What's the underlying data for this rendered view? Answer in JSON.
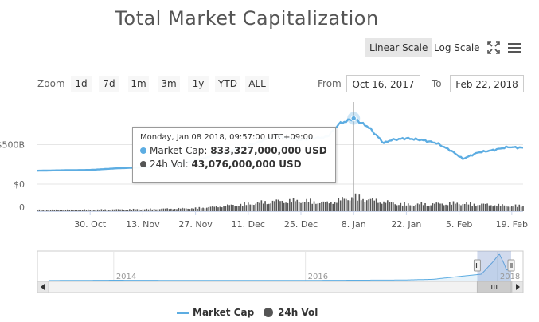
{
  "header": {
    "title": "Total Market Capitalization"
  },
  "scale_buttons": {
    "linear": "Linear Scale",
    "log": "Log Scale",
    "active": "linear"
  },
  "toolbar": {
    "fullscreen_icon": "fullscreen-icon",
    "menu_icon": "hamburger-menu-icon"
  },
  "zoom": {
    "label": "Zoom",
    "buttons": [
      "1d",
      "7d",
      "1m",
      "3m",
      "1y",
      "YTD",
      "ALL"
    ]
  },
  "range": {
    "from_label": "From",
    "from_value": "Oct 16, 2017",
    "to_label": "To",
    "to_value": "Feb 22, 2018"
  },
  "tooltip": {
    "date": "Monday, Jan 08 2018, 09:57:00 UTC+09:00",
    "market_cap_label": "Market Cap:",
    "market_cap_value": "833,327,000,000 USD",
    "vol_label": "24h Vol:",
    "vol_value": "43,076,000,000 USD"
  },
  "legend": {
    "market_cap": "Market Cap",
    "vol": "24h Vol"
  },
  "colors": {
    "market_cap": "#5dade2",
    "vol": "#555555",
    "grid": "#e6e6e6"
  },
  "chart_data": {
    "type": "line",
    "title": "Total Market Capitalization",
    "x_range": [
      "2017-10-16",
      "2018-02-22"
    ],
    "y_axis": {
      "labels": [
        "$0",
        "$500B"
      ],
      "range": [
        0,
        1000000000000
      ]
    },
    "vol_axis": {
      "labels": [
        "0"
      ]
    },
    "x_tick_labels": [
      "30. Oct",
      "13. Nov",
      "27. Nov",
      "11. Dec",
      "25. Dec",
      "8. Jan",
      "22. Jan",
      "5. Feb",
      "19. Feb"
    ],
    "series": [
      {
        "name": "Market Cap",
        "unit": "USD",
        "x": [
          "2017-10-16",
          "2017-10-23",
          "2017-10-30",
          "2017-11-06",
          "2017-11-13",
          "2017-11-20",
          "2017-11-27",
          "2017-12-04",
          "2017-12-11",
          "2017-12-18",
          "2017-12-25",
          "2018-01-01",
          "2018-01-04",
          "2018-01-08",
          "2018-01-12",
          "2018-01-16",
          "2018-01-18",
          "2018-01-22",
          "2018-01-26",
          "2018-01-30",
          "2018-02-03",
          "2018-02-06",
          "2018-02-10",
          "2018-02-14",
          "2018-02-18",
          "2018-02-22"
        ],
        "values": [
          170000000000,
          176000000000,
          180000000000,
          200000000000,
          212000000000,
          228000000000,
          300000000000,
          390000000000,
          485000000000,
          610000000000,
          560000000000,
          600000000000,
          760000000000,
          833327000000,
          720000000000,
          520000000000,
          560000000000,
          580000000000,
          560000000000,
          520000000000,
          420000000000,
          320000000000,
          400000000000,
          430000000000,
          470000000000,
          460000000000
        ]
      },
      {
        "name": "24h Vol",
        "unit": "USD",
        "x": [
          "2017-10-16",
          "2017-10-30",
          "2017-11-13",
          "2017-11-27",
          "2017-12-11",
          "2017-12-18",
          "2017-12-25",
          "2018-01-01",
          "2018-01-08",
          "2018-01-15",
          "2018-01-22",
          "2018-02-05",
          "2018-02-19"
        ],
        "values": [
          4000000000,
          4500000000,
          6000000000,
          9000000000,
          22000000000,
          30000000000,
          32000000000,
          25000000000,
          43076000000,
          30000000000,
          20000000000,
          24000000000,
          16000000000
        ]
      }
    ],
    "navigator": {
      "x_tick_labels": [
        "2014",
        "2016",
        "2018"
      ],
      "x_range": [
        "2013-04-28",
        "2018-02-22"
      ],
      "series": {
        "name": "Market Cap",
        "x": [
          "2013-04-28",
          "2014-01-01",
          "2015-01-01",
          "2016-01-01",
          "2017-01-01",
          "2017-05-01",
          "2017-09-01",
          "2017-11-01",
          "2017-12-15",
          "2018-01-08",
          "2018-01-25",
          "2018-02-05",
          "2018-02-22"
        ],
        "values": [
          2000000000,
          12000000000,
          5000000000,
          7000000000,
          17000000000,
          40000000000,
          150000000000,
          200000000000,
          590000000000,
          833000000000,
          550000000000,
          320000000000,
          460000000000
        ]
      }
    },
    "highlight": {
      "x": "2018-01-08",
      "market_cap": 833327000000,
      "vol": 43076000000
    }
  }
}
